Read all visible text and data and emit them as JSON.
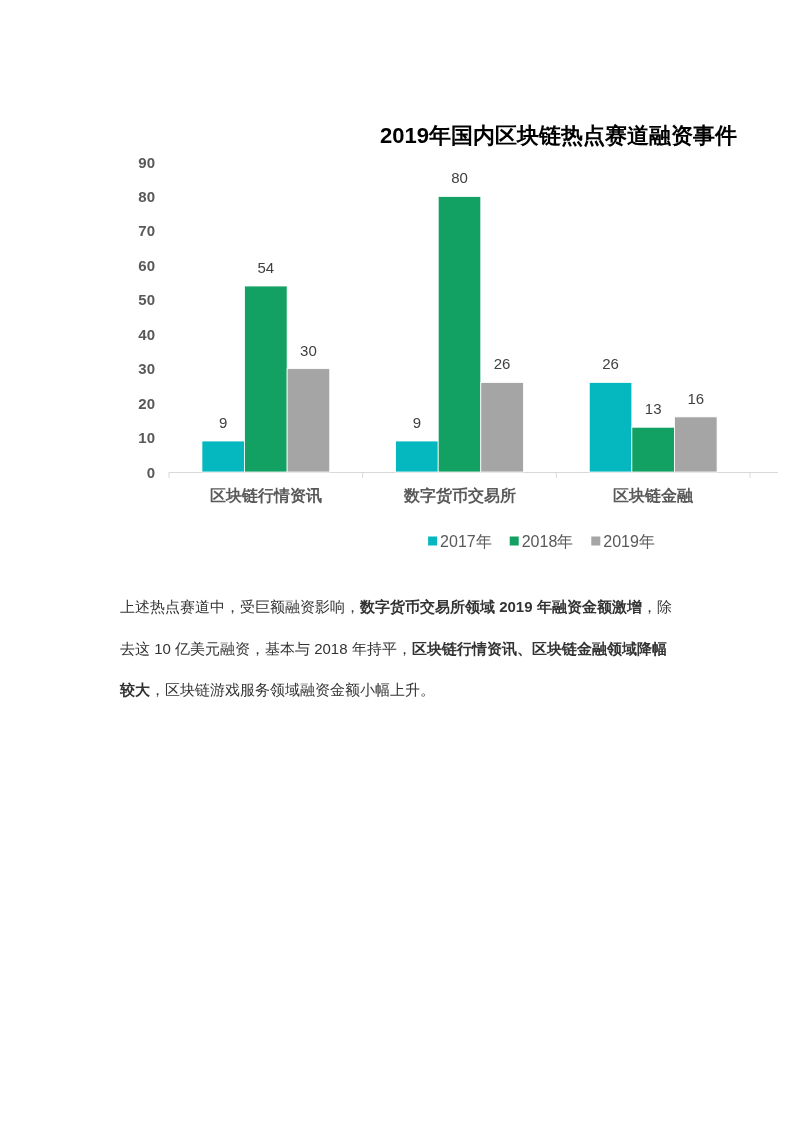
{
  "chart_data": {
    "type": "bar",
    "title": "2019年国内区块链热点赛道融资事件",
    "categories": [
      "区块链行情资讯",
      "数字货币交易所",
      "区块链金融"
    ],
    "series": [
      {
        "name": "2017年",
        "color": "#05b8c0",
        "values": [
          9,
          9,
          26
        ]
      },
      {
        "name": "2018年",
        "color": "#12a163",
        "values": [
          54,
          80,
          13
        ]
      },
      {
        "name": "2019年",
        "color": "#a5a5a5",
        "values": [
          30,
          26,
          16
        ]
      }
    ],
    "ylim": [
      0,
      90
    ],
    "yticks": [
      0,
      10,
      20,
      30,
      40,
      50,
      60,
      70,
      80,
      90
    ],
    "legend": "bottom",
    "data_labels": true,
    "annotations": [
      "上述热点赛道中，受巨额融资影响，",
      "数字货币交易所领域 2019 年融资金额激增",
      "，除去这 10 亿美元融资，基本与 2018 年持平，",
      "区块链行情资讯、区块链金融领域降幅较大",
      "，区块链游戏服务领域融资金额小幅上升。"
    ]
  }
}
